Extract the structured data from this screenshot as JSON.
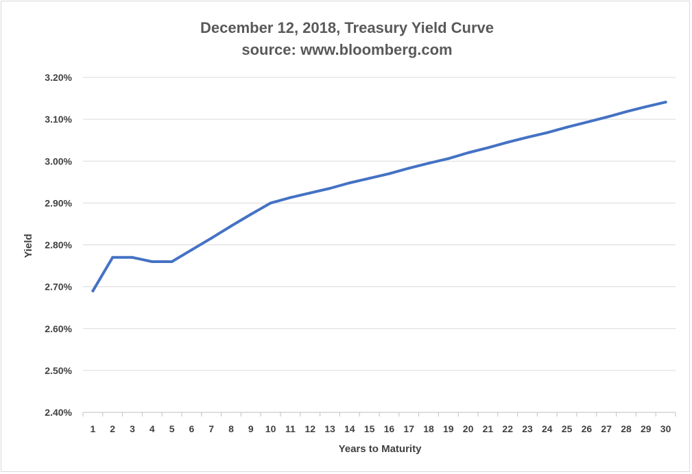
{
  "chart_data": {
    "type": "line",
    "title": "December 12, 2018, Treasury Yield Curve",
    "subtitle": "source: www.bloomberg.com",
    "xlabel": "Years to Maturity",
    "ylabel": "Yield",
    "x": [
      1,
      2,
      3,
      4,
      5,
      6,
      7,
      8,
      9,
      10,
      11,
      12,
      13,
      14,
      15,
      16,
      17,
      18,
      19,
      20,
      21,
      22,
      23,
      24,
      25,
      26,
      27,
      28,
      29,
      30
    ],
    "xtick_labels": [
      "1",
      "2",
      "3",
      "4",
      "5",
      "6",
      "7",
      "8",
      "9",
      "10",
      "11",
      "12",
      "13",
      "14",
      "15",
      "16",
      "17",
      "18",
      "19",
      "20",
      "21",
      "22",
      "23",
      "24",
      "25",
      "26",
      "27",
      "28",
      "29",
      "30"
    ],
    "ylim": [
      2.4,
      3.2
    ],
    "yticks": [
      2.4,
      2.5,
      2.6,
      2.7,
      2.8,
      2.9,
      3.0,
      3.1,
      3.2
    ],
    "ytick_labels": [
      "2.40%",
      "2.50%",
      "2.60%",
      "2.70%",
      "2.80%",
      "2.90%",
      "3.00%",
      "3.10%",
      "3.20%"
    ],
    "grid": true,
    "series": [
      {
        "color": "#4472c4",
        "values": [
          2.69,
          2.77,
          2.77,
          2.76,
          2.76,
          2.788,
          2.816,
          2.845,
          2.873,
          2.9,
          2.913,
          2.924,
          2.935,
          2.948,
          2.959,
          2.97,
          2.983,
          2.995,
          3.006,
          3.02,
          3.032,
          3.045,
          3.057,
          3.068,
          3.081,
          3.093,
          3.105,
          3.118,
          3.13,
          3.141
        ]
      }
    ]
  }
}
